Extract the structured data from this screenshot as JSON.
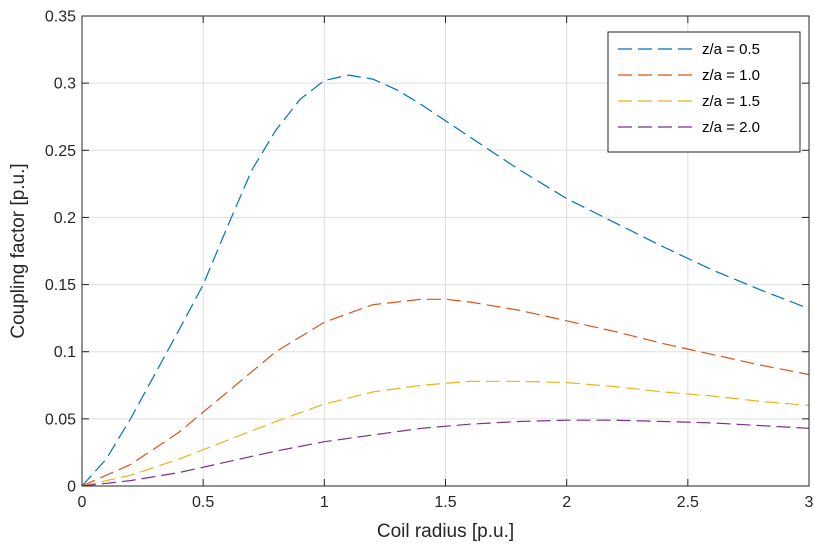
{
  "chart_data": {
    "type": "line",
    "title": "",
    "xlabel": "Coil radius [p.u.]",
    "ylabel": "Coupling factor [p.u.]",
    "xlim": [
      0,
      3
    ],
    "ylim": [
      0,
      0.35
    ],
    "xticks": [
      0,
      0.5,
      1,
      1.5,
      2,
      2.5,
      3
    ],
    "xtick_labels": [
      "0",
      "0.5",
      "1",
      "1.5",
      "2",
      "2.5",
      "3"
    ],
    "yticks": [
      0,
      0.05,
      0.1,
      0.15,
      0.2,
      0.25,
      0.3,
      0.35
    ],
    "ytick_labels": [
      "0",
      "0.05",
      "0.1",
      "0.15",
      "0.2",
      "0.25",
      "0.3",
      "0.35"
    ],
    "grid": true,
    "legend_position": "top-right",
    "line_style": "dashed",
    "series": [
      {
        "name": "z/a = 0.5",
        "color": "#0072BD",
        "x": [
          0,
          0.1,
          0.2,
          0.3,
          0.4,
          0.5,
          0.6,
          0.7,
          0.8,
          0.9,
          1.0,
          1.1,
          1.2,
          1.3,
          1.4,
          1.5,
          1.6,
          1.8,
          2.0,
          2.2,
          2.4,
          2.6,
          2.8,
          3.0
        ],
        "y": [
          0,
          0.02,
          0.05,
          0.083,
          0.116,
          0.15,
          0.193,
          0.235,
          0.265,
          0.288,
          0.302,
          0.306,
          0.303,
          0.295,
          0.284,
          0.272,
          0.26,
          0.236,
          0.214,
          0.196,
          0.178,
          0.161,
          0.146,
          0.132
        ]
      },
      {
        "name": "z/a = 1.0",
        "color": "#D95319",
        "x": [
          0,
          0.2,
          0.4,
          0.6,
          0.8,
          1.0,
          1.2,
          1.4,
          1.5,
          1.6,
          1.8,
          2.0,
          2.2,
          2.4,
          2.6,
          2.8,
          3.0
        ],
        "y": [
          0,
          0.016,
          0.04,
          0.07,
          0.1,
          0.122,
          0.135,
          0.139,
          0.139,
          0.137,
          0.131,
          0.123,
          0.115,
          0.106,
          0.098,
          0.09,
          0.083
        ]
      },
      {
        "name": "z/a = 1.5",
        "color": "#EDB120",
        "x": [
          0,
          0.2,
          0.4,
          0.6,
          0.8,
          1.0,
          1.2,
          1.4,
          1.6,
          1.8,
          2.0,
          2.2,
          2.4,
          2.6,
          2.8,
          3.0
        ],
        "y": [
          0,
          0.008,
          0.02,
          0.034,
          0.048,
          0.061,
          0.07,
          0.075,
          0.078,
          0.078,
          0.077,
          0.074,
          0.07,
          0.067,
          0.063,
          0.06
        ]
      },
      {
        "name": "z/a = 2.0",
        "color": "#7E2F8E",
        "x": [
          0,
          0.2,
          0.4,
          0.6,
          0.8,
          1.0,
          1.2,
          1.4,
          1.6,
          1.8,
          2.0,
          2.2,
          2.4,
          2.6,
          2.8,
          3.0
        ],
        "y": [
          0,
          0.004,
          0.01,
          0.018,
          0.026,
          0.033,
          0.038,
          0.043,
          0.046,
          0.048,
          0.049,
          0.049,
          0.048,
          0.047,
          0.045,
          0.043
        ]
      }
    ]
  }
}
